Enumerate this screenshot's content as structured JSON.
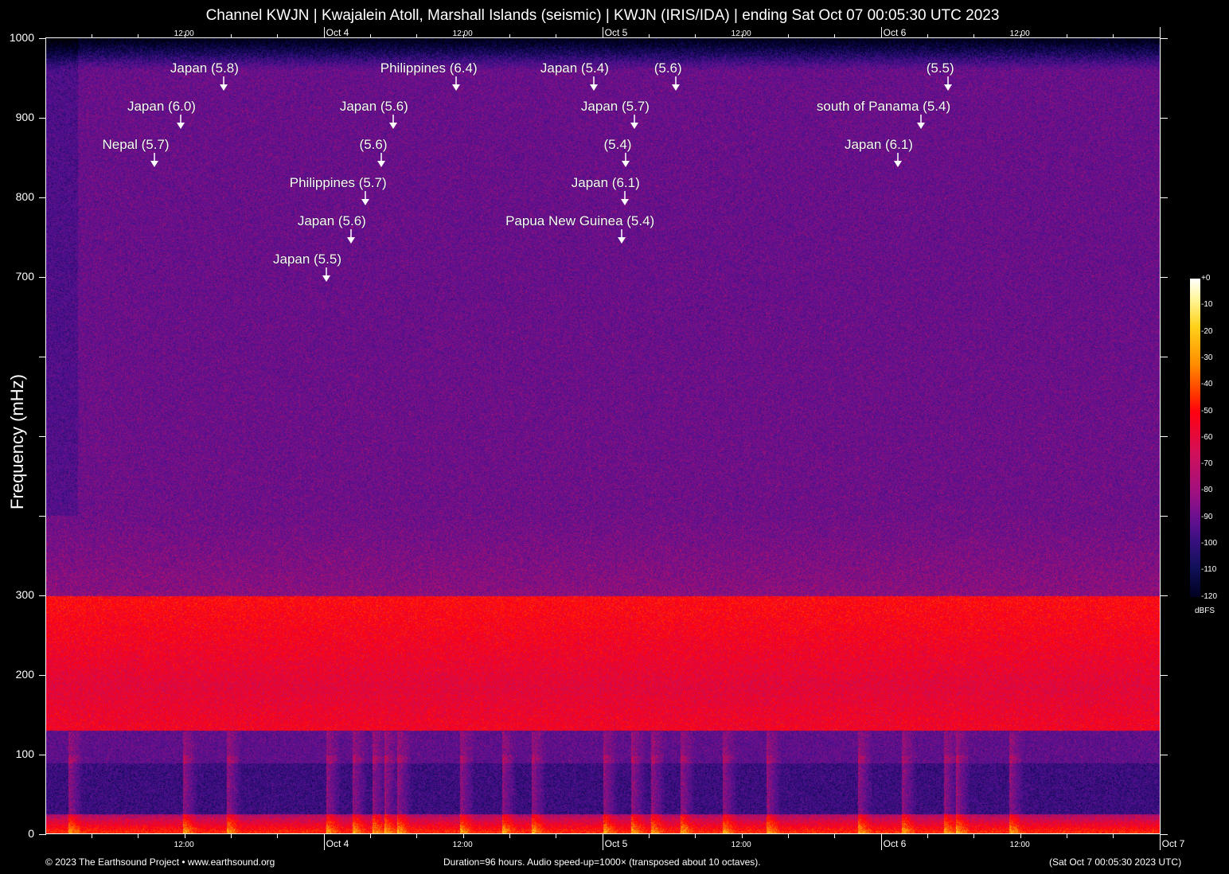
{
  "title": "Channel KWJN | Kwajalein Atoll, Marshall Islands (seismic) | KWJN (IRIS/IDA) | ending Sat Oct 07 00:05:30 UTC 2023",
  "footer": {
    "left": "© 2023 The Earthsound Project • www.earthsound.org",
    "center": "Duration=96 hours. Audio speed-up=1000× (transposed about 10 octaves).",
    "right": "(Sat Oct  7 00:05:30 2023 UTC)"
  },
  "chart_data": {
    "type": "heatmap",
    "title": "Channel KWJN | Kwajalein Atoll, Marshall Islands (seismic) | KWJN (IRIS/IDA) | ending Sat Oct 07 00:05:30 UTC 2023",
    "ylabel": "Frequency (mHz)",
    "ylim": [
      0,
      1000
    ],
    "y_ticks": [
      0,
      100,
      200,
      300,
      400,
      500,
      600,
      700,
      800,
      900,
      1000
    ],
    "y_tick_labels": [
      "0",
      "100",
      "200",
      "300",
      "",
      "",
      "",
      "700",
      "800",
      "900",
      "1000"
    ],
    "xlim": [
      "2023-10-03 00:05:30",
      "2023-10-07 00:05:30"
    ],
    "x_tick_labels": [
      {
        "time": "2023-10-03 12:00",
        "label": "12:00"
      },
      {
        "time": "2023-10-04 00:00",
        "label": "Oct  4"
      },
      {
        "time": "2023-10-04 12:00",
        "label": "12:00"
      },
      {
        "time": "2023-10-05 00:00",
        "label": "Oct  5"
      },
      {
        "time": "2023-10-05 12:00",
        "label": "12:00"
      },
      {
        "time": "2023-10-06 00:00",
        "label": "Oct  6"
      },
      {
        "time": "2023-10-06 12:00",
        "label": "12:00"
      },
      {
        "time": "2023-10-07 00:00",
        "label": "Oct  7"
      }
    ],
    "colorbar": {
      "unit": "dBFS",
      "range": [
        -120,
        0
      ],
      "tick_labels": [
        "+0",
        "-10",
        "-20",
        "-30",
        "-40",
        "-50",
        "-60",
        "-70",
        "-80",
        "-90",
        "-100",
        "-110",
        "-120"
      ],
      "colormap": "black-blue-purple-red-yellow-white"
    },
    "grid": false,
    "events": [
      {
        "label": "Japan (5.8)",
        "time": "2023-10-03 15:23"
      },
      {
        "label": "Japan (6.0)",
        "time": "2023-10-03 11:41"
      },
      {
        "label": "Nepal (5.7)",
        "time": "2023-10-03 09:25"
      },
      {
        "label": "Philippines (6.4)",
        "time": "2023-10-04 11:24"
      },
      {
        "label": "Japan (5.6)",
        "time": "2023-10-04 05:59"
      },
      {
        "label": "(5.6)",
        "time": "2023-10-04 04:57"
      },
      {
        "label": "Philippines (5.7)",
        "time": "2023-10-04 03:35"
      },
      {
        "label": "Japan (5.6)",
        "time": "2023-10-04 02:21"
      },
      {
        "label": "Japan (5.5)",
        "time": "2023-10-04 00:14"
      },
      {
        "label": "Japan (5.4)",
        "time": "2023-10-04 23:16"
      },
      {
        "label": "(5.6)",
        "time": "2023-10-05 06:20"
      },
      {
        "label": "Japan (5.7)",
        "time": "2023-10-05 02:46"
      },
      {
        "label": "(5.4)",
        "time": "2023-10-05 02:00"
      },
      {
        "label": "Japan (6.1)",
        "time": "2023-10-05 01:56"
      },
      {
        "label": "Papua New Guinea (5.4)",
        "time": "2023-10-05 01:40"
      },
      {
        "label": "(5.5)",
        "time": "2023-10-06 05:47"
      },
      {
        "label": "south of Panama (5.4)",
        "time": "2023-10-06 03:27"
      },
      {
        "label": "Japan (6.1)",
        "time": "2023-10-06 01:28"
      }
    ]
  }
}
